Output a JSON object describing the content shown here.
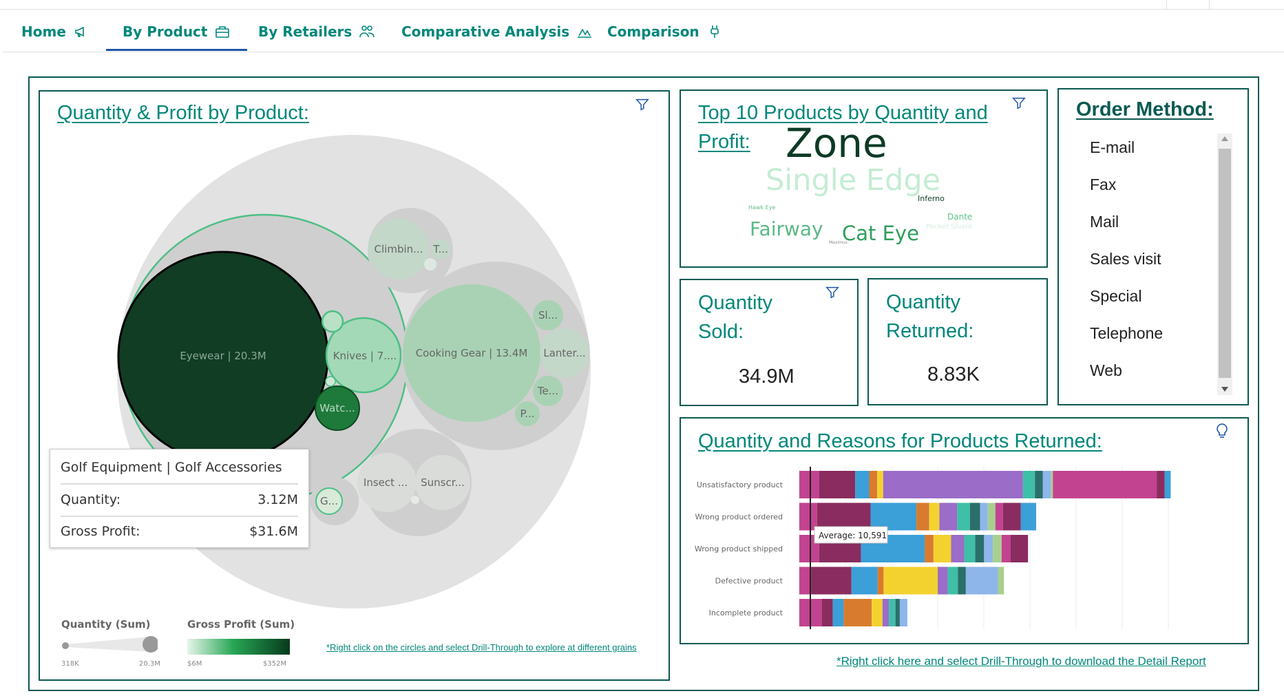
{
  "tabs": [
    {
      "label": "Home",
      "icon": "megaphone-icon"
    },
    {
      "label": "By Product",
      "icon": "briefcase-icon",
      "active": true
    },
    {
      "label": "By Retailers",
      "icon": "people-icon"
    },
    {
      "label": "Comparative Analysis",
      "icon": "chart-icon"
    },
    {
      "label": "Comparison",
      "icon": "plug-icon"
    }
  ],
  "bubble_panel": {
    "title": "Quantity & Profit by Product:",
    "bubbles": [
      {
        "label": "Eyewear | 20.3M"
      },
      {
        "label": "Knives | 7...."
      },
      {
        "label": "Watc..."
      },
      {
        "label": "G..."
      },
      {
        "label": "Climbin..."
      },
      {
        "label": "T..."
      },
      {
        "label": "Cooking Gear | 13.4M"
      },
      {
        "label": "Sl..."
      },
      {
        "label": "Lanter..."
      },
      {
        "label": "Te..."
      },
      {
        "label": "P..."
      },
      {
        "label": "Insect ..."
      },
      {
        "label": "Sunscr..."
      }
    ],
    "tooltip": {
      "title": "Golf Equipment | Golf Accessories",
      "quantity_label": "Quantity:",
      "quantity_value": "3.12M",
      "profit_label": "Gross Profit:",
      "profit_value": "$31.6M"
    },
    "legend": {
      "size_title": "Quantity (Sum)",
      "size_min": "318K",
      "size_max": "20.3M",
      "color_title": "Gross Profit (Sum)",
      "color_min": "$6M",
      "color_max": "$352M"
    },
    "note": "*Right click on the circles and select Drill-Through to explore at different grains"
  },
  "wordcloud": {
    "title": "Top 10 Products by Quantity and Profit:",
    "words": [
      "Zone",
      "Single Edge",
      "Fairway",
      "Cat Eye",
      "Inferno",
      "Dante",
      "Hawk Eye",
      "Maximus",
      "Pocket Shield"
    ]
  },
  "kpis": {
    "sold_label": "Quantity Sold:",
    "sold_value": "34.9M",
    "returned_label": "Quantity Returned:",
    "returned_value": "8.83K"
  },
  "order_method": {
    "title": "Order Method:",
    "items": [
      "E-mail",
      "Fax",
      "Mail",
      "Sales visit",
      "Special",
      "Telephone",
      "Web"
    ]
  },
  "returns": {
    "title": "Quantity and Reasons for Products Returned:",
    "average_label": "Average: 10,591",
    "note": "*Right click here and select Drill-Through to download the Detail Report"
  },
  "chart_data": {
    "type": "bar",
    "orientation": "horizontal",
    "stacked": true,
    "title": "Quantity and Reasons for Products Returned:",
    "categories": [
      "Unsatisfactory product",
      "Wrong product ordered",
      "Wrong product shipped",
      "Defective product",
      "Incomplete product"
    ],
    "totals": [
      20700,
      13200,
      11400,
      10400,
      5600
    ],
    "average": 10591,
    "segment_colors": [
      "#c2438f",
      "#8a2c5f",
      "#3b9fd8",
      "#d87b2f",
      "#f3d22f",
      "#9b6cc8",
      "#3fbfa7",
      "#2a6f6a",
      "#8fb6ea",
      "#a8d08d"
    ],
    "segments": [
      [
        0.05,
        0.09,
        0.035,
        0.02,
        0.015,
        0.35,
        0.03,
        0.02,
        0.02,
        0.005,
        0.26,
        0.02,
        0.015
      ],
      [
        0.07,
        0.21,
        0.18,
        0.05,
        0.04,
        0.07,
        0.05,
        0.04,
        0.03,
        0.03,
        0.03,
        0.07,
        0.06
      ],
      [
        0.09,
        0.19,
        0.29,
        0.04,
        0.08,
        0.06,
        0.05,
        0.04,
        0.04,
        0.04,
        0.04,
        0.08
      ],
      [
        0.06,
        0.2,
        0.13,
        0.03,
        0.27,
        0.05,
        0.05,
        0.04,
        0.16,
        0.03
      ],
      [
        0.21,
        0.1,
        0.1,
        0.26,
        0.1,
        0.06,
        0.06,
        0.04,
        0.07
      ]
    ]
  }
}
